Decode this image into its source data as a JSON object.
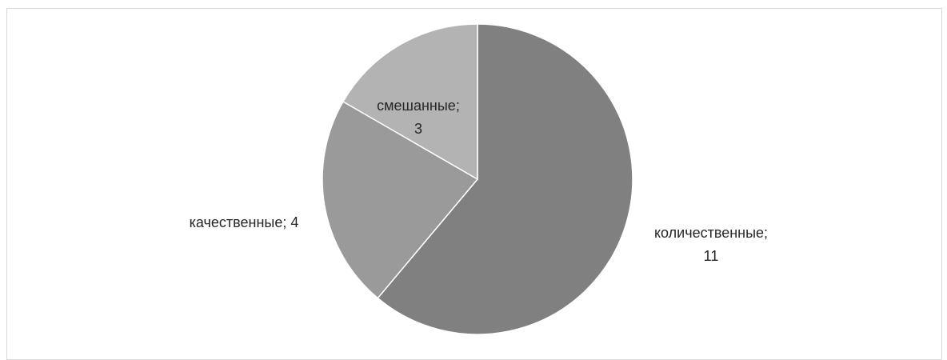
{
  "chart_data": {
    "type": "pie",
    "slices": [
      {
        "label": "количественные",
        "value": 11,
        "color": "#808080",
        "label_lines": [
          "количественные;",
          "11"
        ]
      },
      {
        "label": "качественные",
        "value": 4,
        "color": "#9a9a9a",
        "label_lines": [
          "качественные; 4"
        ]
      },
      {
        "label": "смешанные",
        "value": 3,
        "color": "#b3b3b3",
        "label_lines": [
          "смешанные;",
          "3"
        ]
      }
    ],
    "start_angle_deg": 0,
    "direction": "clockwise",
    "legend": "none"
  }
}
